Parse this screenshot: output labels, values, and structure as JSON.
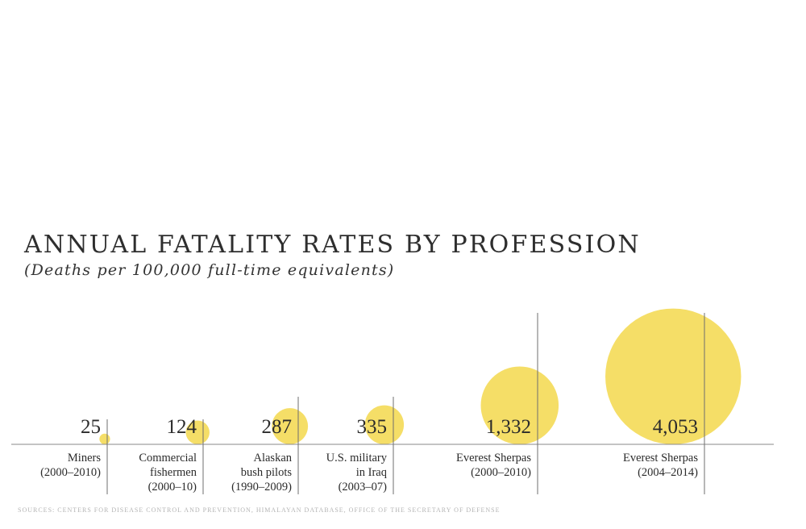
{
  "chart_data": {
    "type": "bubble",
    "title": "ANNUAL FATALITY RATES BY PROFESSION",
    "subtitle": "(Deaths per 100,000 full-time equivalents)",
    "categories": [
      {
        "lines": [
          "Miners",
          "(2000–2010)"
        ],
        "value": 25,
        "value_label": "25"
      },
      {
        "lines": [
          "Commercial",
          "fishermen",
          "(2000–10)"
        ],
        "value": 124,
        "value_label": "124"
      },
      {
        "lines": [
          "Alaskan",
          "bush pilots",
          "(1990–2009)"
        ],
        "value": 287,
        "value_label": "287"
      },
      {
        "lines": [
          "U.S. military",
          "in Iraq",
          "(2003–07)"
        ],
        "value": 335,
        "value_label": "335"
      },
      {
        "lines": [
          "Everest Sherpas",
          "(2000–2010)"
        ],
        "value": 1332,
        "value_label": "1,332"
      },
      {
        "lines": [
          "Everest Sherpas",
          "(2004–2014)"
        ],
        "value": 4053,
        "value_label": "4,053"
      }
    ],
    "encoding": "circle area proportional to value",
    "colors": {
      "bubble": "#f2d53c",
      "axis": "#8a8a8a",
      "text": "#2b2b2b",
      "source": "#b4b4b4"
    }
  },
  "source": "SOURCES: CENTERS FOR DISEASE CONTROL AND PREVENTION, HIMALAYAN DATABASE, OFFICE OF THE SECRETARY OF DEFENSE"
}
